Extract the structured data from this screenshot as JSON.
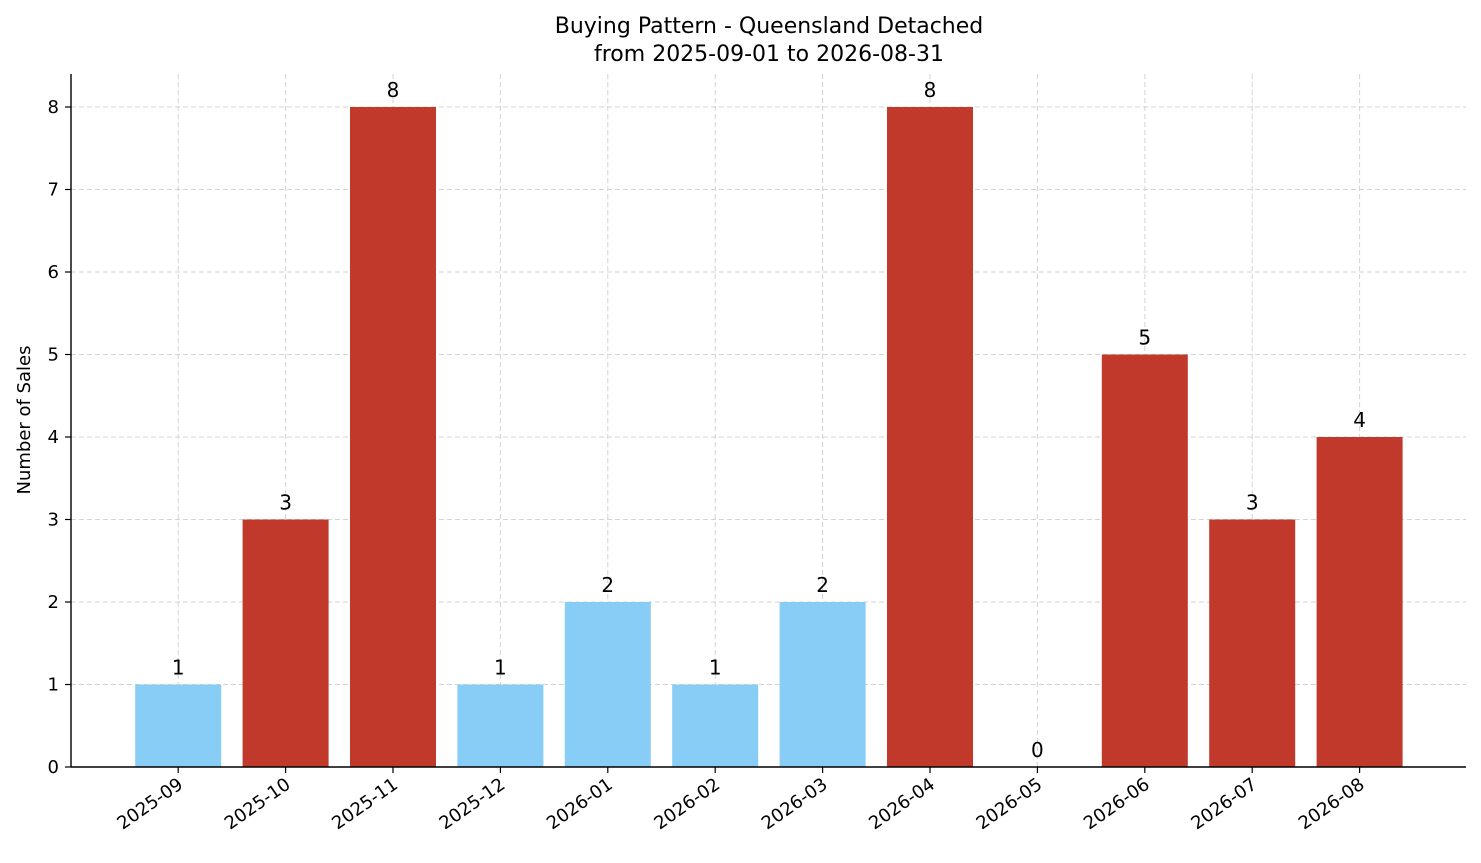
{
  "chart_data": {
    "type": "bar",
    "title_line1": "Buying Pattern - Queensland Detached",
    "title_line2": "from 2025-09-01 to 2026-08-31",
    "xlabel": "",
    "ylabel": "Number of Sales",
    "categories": [
      "2025-09",
      "2025-10",
      "2025-11",
      "2025-12",
      "2026-01",
      "2026-02",
      "2026-03",
      "2026-04",
      "2026-05",
      "2026-06",
      "2026-07",
      "2026-08"
    ],
    "values": [
      1,
      3,
      8,
      1,
      2,
      1,
      2,
      8,
      0,
      5,
      3,
      4
    ],
    "ylim": [
      0,
      8.4
    ],
    "yticks": [
      0,
      1,
      2,
      3,
      4,
      5,
      6,
      7,
      8
    ],
    "grid": true,
    "colors": {
      "high": "#c0392b",
      "low": "#87cdf6"
    },
    "bar_color_groups": [
      "low",
      "high",
      "high",
      "low",
      "low",
      "low",
      "low",
      "high",
      "low",
      "high",
      "high",
      "high"
    ]
  }
}
